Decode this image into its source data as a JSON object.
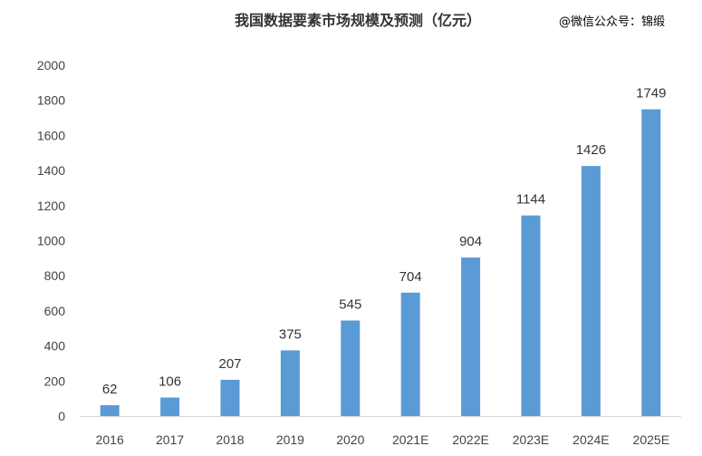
{
  "chart_data": {
    "type": "bar",
    "title": "我国数据要素市场规模及预测（亿元）",
    "watermark": "@微信公众号：锦缎",
    "categories": [
      "2016",
      "2017",
      "2018",
      "2019",
      "2020",
      "2021E",
      "2022E",
      "2023E",
      "2024E",
      "2025E"
    ],
    "values": [
      62,
      106,
      207,
      375,
      545,
      704,
      904,
      1144,
      1426,
      1749
    ],
    "ylim": [
      0,
      2000
    ],
    "yticks": [
      0,
      200,
      400,
      600,
      800,
      1000,
      1200,
      1400,
      1600,
      1800,
      2000
    ],
    "grid": false,
    "bar_color": "#5b9bd5",
    "xlabel": "",
    "ylabel": ""
  }
}
